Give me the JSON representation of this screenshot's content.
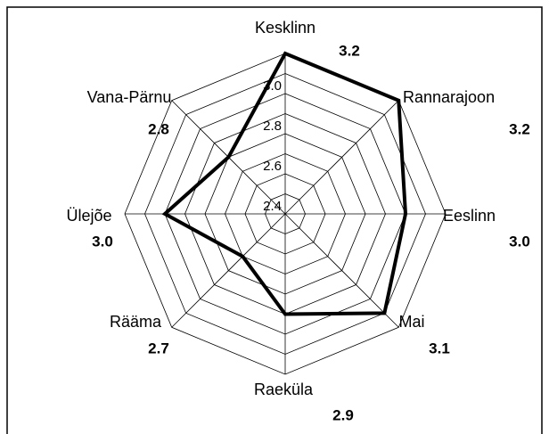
{
  "chart_data": {
    "type": "radar",
    "categories": [
      "Kesklinn",
      "Rannarajoon",
      "Eeslinn",
      "Mai",
      "Raeküla",
      "Rääma",
      "Ülejõe",
      "Vana-Pärnu"
    ],
    "values": [
      3.2,
      3.2,
      3.0,
      3.1,
      2.9,
      2.7,
      3.0,
      2.8
    ],
    "value_labels": [
      "3.2",
      "3.2",
      "3.0",
      "3.1",
      "2.9",
      "2.7",
      "3.0",
      "2.8"
    ],
    "color": "#000000",
    "ylim": [
      2.4,
      3.2
    ],
    "yticks": [
      2.4,
      2.6,
      2.8,
      {
        "value": 3.0,
        "label": "3.0"
      }
    ],
    "minor_grid": [
      2.5,
      2.7,
      2.9,
      3.1,
      3.2
    ],
    "grid": true
  }
}
